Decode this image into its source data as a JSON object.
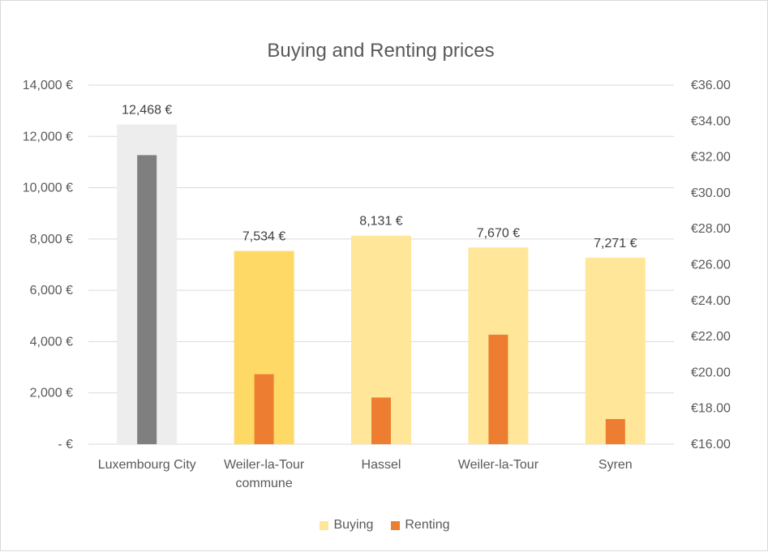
{
  "chart_data": {
    "type": "bar",
    "title": "Buying and Renting prices",
    "categories": [
      "Luxembourg City",
      "Weiler-la-Tour commune",
      "Hassel",
      "Weiler-la-Tour",
      "Syren"
    ],
    "category_lines": [
      [
        "Luxembourg City"
      ],
      [
        "Weiler-la-Tour",
        "commune"
      ],
      [
        "Hassel"
      ],
      [
        "Weiler-la-Tour"
      ],
      [
        "Syren"
      ]
    ],
    "series": [
      {
        "name": "Buying",
        "axis": "left",
        "values": [
          12468,
          7534,
          8131,
          7670,
          7271
        ],
        "data_labels": [
          "12,468 €",
          "7,534 €",
          "8,131 €",
          "7,670 €",
          "7,271 €"
        ],
        "color": "#FFE699",
        "point_colors": [
          "#EDEDED",
          "#FFD966",
          "#FFE699",
          "#FFE699",
          "#FFE699"
        ]
      },
      {
        "name": "Renting",
        "axis": "right",
        "values": [
          32.1,
          19.9,
          18.6,
          22.1,
          17.4
        ],
        "color": "#ED7D31",
        "point_colors": [
          "#7F7F7F",
          "#ED7D31",
          "#ED7D31",
          "#ED7D31",
          "#ED7D31"
        ]
      }
    ],
    "y_left": {
      "ylim": [
        0,
        14000
      ],
      "ticks": [
        0,
        2000,
        4000,
        6000,
        8000,
        10000,
        12000,
        14000
      ],
      "tick_labels": [
        "-   €",
        "2,000 €",
        "4,000 €",
        "6,000 €",
        "8,000 €",
        "10,000 €",
        "12,000 €",
        "14,000 €"
      ]
    },
    "y_right": {
      "ylim": [
        16,
        36
      ],
      "ticks": [
        16,
        18,
        20,
        22,
        24,
        26,
        28,
        30,
        32,
        34,
        36
      ],
      "tick_labels": [
        "€16.00",
        "€18.00",
        "€20.00",
        "€22.00",
        "€24.00",
        "€26.00",
        "€28.00",
        "€30.00",
        "€32.00",
        "€34.00",
        "€36.00"
      ]
    },
    "grid": true,
    "legend_position": "bottom"
  }
}
